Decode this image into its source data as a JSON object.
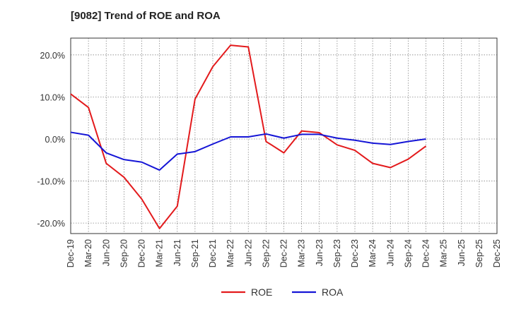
{
  "chart_data": {
    "type": "line",
    "title": "[9082]  Trend of ROE and ROA",
    "xlabel": "",
    "ylabel": "",
    "ylim": [
      -22.5,
      24.0
    ],
    "yticks": [
      20.0,
      10.0,
      0.0,
      -10.0,
      -20.0
    ],
    "ytick_labels": [
      "20.0%",
      "10.0%",
      "0.0%",
      "-10.0%",
      "-20.0%"
    ],
    "categories": [
      "Dec-19",
      "Mar-20",
      "Jun-20",
      "Sep-20",
      "Dec-20",
      "Mar-21",
      "Jun-21",
      "Sep-21",
      "Dec-21",
      "Mar-22",
      "Jun-22",
      "Sep-22",
      "Dec-22",
      "Mar-23",
      "Jun-23",
      "Sep-23",
      "Dec-23",
      "Mar-24",
      "Jun-24",
      "Sep-24",
      "Dec-24",
      "Mar-25"
    ],
    "tick_labels": [
      "Dec-19",
      "Mar-20",
      "Jun-20",
      "Sep-20",
      "Dec-20",
      "Mar-21",
      "Jun-21",
      "Sep-21",
      "Dec-21",
      "Mar-22",
      "Jun-22",
      "Sep-22",
      "Dec-22",
      "Mar-23",
      "Jun-23",
      "Sep-23",
      "Dec-23",
      "Mar-24",
      "Jun-24",
      "Sep-24",
      "Dec-24",
      "Mar-25",
      "Jun-25",
      "Sep-25",
      "Dec-25"
    ],
    "grid": true,
    "legend_position": "bottom",
    "series": [
      {
        "name": "ROE",
        "color": "#e31a1c",
        "x": [
          "Dec-19",
          "Mar-20",
          "Jun-20",
          "Sep-20",
          "Dec-20",
          "Mar-21",
          "Jun-21",
          "Sep-21",
          "Dec-21",
          "Mar-22",
          "Jun-22",
          "Sep-22",
          "Dec-22",
          "Mar-23",
          "Jun-23",
          "Sep-23",
          "Dec-23",
          "Mar-24",
          "Jun-24",
          "Sep-24",
          "Dec-24"
        ],
        "values": [
          10.7,
          7.5,
          -5.8,
          -9.1,
          -14.3,
          -21.3,
          -16.0,
          9.5,
          17.2,
          22.3,
          21.9,
          -0.6,
          -3.3,
          1.9,
          1.5,
          -1.4,
          -2.7,
          -5.8,
          -6.8,
          -4.8,
          -1.7
        ]
      },
      {
        "name": "ROA",
        "color": "#1515d6",
        "x": [
          "Dec-19",
          "Mar-20",
          "Jun-20",
          "Sep-20",
          "Dec-20",
          "Mar-21",
          "Jun-21",
          "Sep-21",
          "Dec-21",
          "Mar-22",
          "Jun-22",
          "Sep-22",
          "Dec-22",
          "Mar-23",
          "Jun-23",
          "Sep-23",
          "Dec-23",
          "Mar-24",
          "Jun-24",
          "Sep-24",
          "Dec-24"
        ],
        "values": [
          1.6,
          0.9,
          -3.3,
          -4.9,
          -5.5,
          -7.4,
          -3.6,
          -3.0,
          -1.2,
          0.5,
          0.5,
          1.2,
          0.2,
          1.1,
          1.1,
          0.2,
          -0.3,
          -1.0,
          -1.3,
          -0.6,
          0.0
        ]
      }
    ]
  }
}
